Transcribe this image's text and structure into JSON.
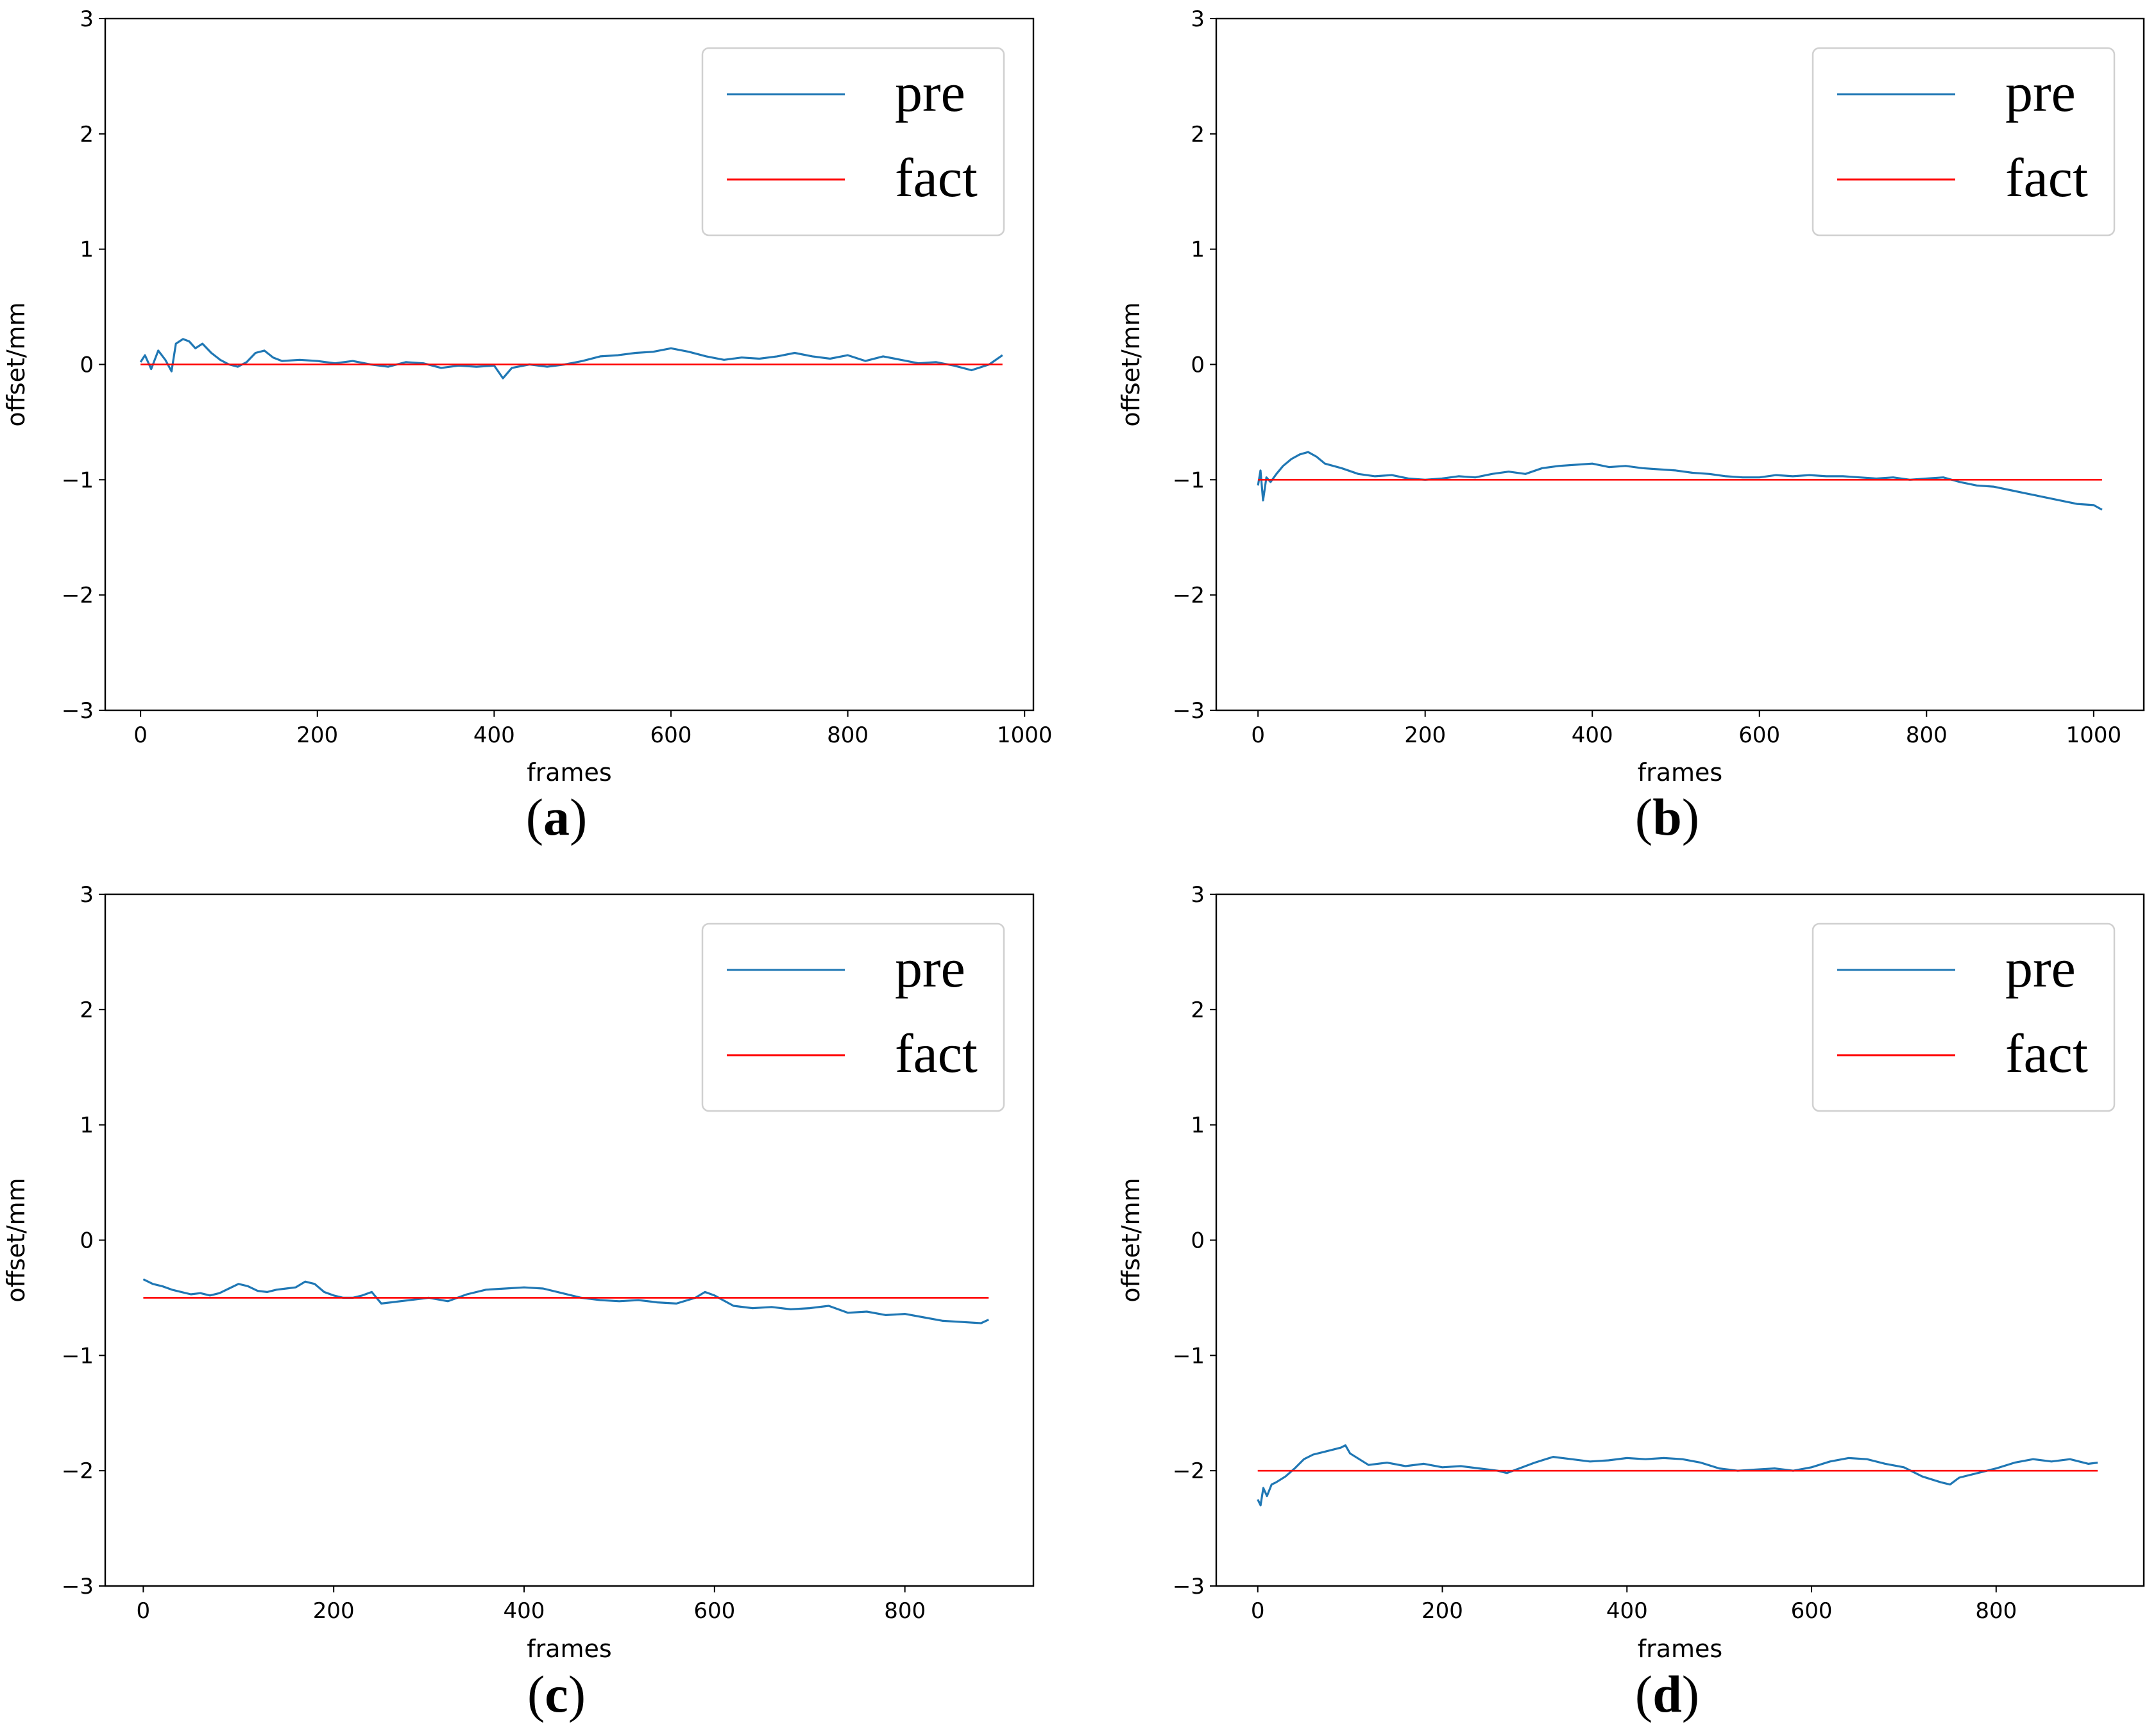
{
  "chart_data": [
    {
      "type": "line",
      "panel": "a",
      "caption_open": "(",
      "caption_letter": "a",
      "caption_close": ")",
      "xlabel": "frames",
      "ylabel": "offset/mm",
      "xlim": [
        -40,
        1010
      ],
      "ylim": [
        -3,
        3
      ],
      "xticks": [
        0,
        200,
        400,
        600,
        800,
        1000
      ],
      "yticks": [
        3,
        2,
        1,
        0,
        -1,
        -2,
        -3
      ],
      "ytick_labels": [
        "3",
        "2",
        "1",
        "0",
        "−1",
        "−2",
        "−3"
      ],
      "legend": [
        "pre",
        "fact"
      ],
      "legend_position": "top-right",
      "series": [
        {
          "name": "pre",
          "color": "#1f77b4",
          "x": [
            0,
            5,
            12,
            20,
            28,
            35,
            40,
            48,
            55,
            62,
            70,
            80,
            90,
            100,
            110,
            120,
            130,
            140,
            150,
            160,
            180,
            200,
            220,
            240,
            260,
            280,
            300,
            320,
            340,
            360,
            380,
            400,
            410,
            420,
            440,
            460,
            480,
            500,
            520,
            540,
            560,
            580,
            600,
            620,
            640,
            660,
            680,
            700,
            720,
            740,
            760,
            780,
            800,
            820,
            840,
            860,
            880,
            900,
            920,
            940,
            960,
            975
          ],
          "y": [
            0.02,
            0.08,
            -0.04,
            0.12,
            0.04,
            -0.06,
            0.18,
            0.22,
            0.2,
            0.14,
            0.18,
            0.1,
            0.04,
            0.0,
            -0.02,
            0.02,
            0.1,
            0.12,
            0.06,
            0.03,
            0.04,
            0.03,
            0.01,
            0.03,
            0.0,
            -0.02,
            0.02,
            0.01,
            -0.03,
            -0.01,
            -0.02,
            -0.01,
            -0.12,
            -0.03,
            0.0,
            -0.02,
            0.0,
            0.03,
            0.07,
            0.08,
            0.1,
            0.11,
            0.14,
            0.11,
            0.07,
            0.04,
            0.06,
            0.05,
            0.07,
            0.1,
            0.07,
            0.05,
            0.08,
            0.03,
            0.07,
            0.04,
            0.01,
            0.02,
            -0.01,
            -0.05,
            0.0,
            0.08
          ]
        },
        {
          "name": "fact",
          "color": "#ff0000",
          "x": [
            0,
            975
          ],
          "y": [
            0,
            0
          ]
        }
      ]
    },
    {
      "type": "line",
      "panel": "b",
      "caption_open": "(",
      "caption_letter": "b",
      "caption_close": ")",
      "xlabel": "frames",
      "ylabel": "offset/mm",
      "xlim": [
        -50,
        1060
      ],
      "ylim": [
        -3,
        3
      ],
      "xticks": [
        0,
        200,
        400,
        600,
        800,
        1000
      ],
      "yticks": [
        3,
        2,
        1,
        0,
        -1,
        -2,
        -3
      ],
      "ytick_labels": [
        "3",
        "2",
        "1",
        "0",
        "−1",
        "−2",
        "−3"
      ],
      "legend": [
        "pre",
        "fact"
      ],
      "legend_position": "top-right",
      "series": [
        {
          "name": "pre",
          "color": "#1f77b4",
          "x": [
            0,
            3,
            6,
            10,
            15,
            22,
            30,
            40,
            50,
            60,
            70,
            80,
            100,
            120,
            140,
            160,
            180,
            200,
            220,
            240,
            260,
            280,
            300,
            320,
            340,
            360,
            380,
            400,
            420,
            440,
            460,
            480,
            500,
            520,
            540,
            560,
            580,
            600,
            620,
            640,
            660,
            680,
            700,
            720,
            740,
            760,
            780,
            800,
            820,
            840,
            860,
            880,
            900,
            920,
            940,
            960,
            980,
            1000,
            1010
          ],
          "y": [
            -1.05,
            -0.92,
            -1.18,
            -0.98,
            -1.02,
            -0.95,
            -0.88,
            -0.82,
            -0.78,
            -0.76,
            -0.8,
            -0.86,
            -0.9,
            -0.95,
            -0.97,
            -0.96,
            -0.99,
            -1.0,
            -0.99,
            -0.97,
            -0.98,
            -0.95,
            -0.93,
            -0.95,
            -0.9,
            -0.88,
            -0.87,
            -0.86,
            -0.89,
            -0.88,
            -0.9,
            -0.91,
            -0.92,
            -0.94,
            -0.95,
            -0.97,
            -0.98,
            -0.98,
            -0.96,
            -0.97,
            -0.96,
            -0.97,
            -0.97,
            -0.98,
            -0.99,
            -0.98,
            -1.0,
            -0.99,
            -0.98,
            -1.02,
            -1.05,
            -1.06,
            -1.09,
            -1.12,
            -1.15,
            -1.18,
            -1.21,
            -1.22,
            -1.26
          ]
        },
        {
          "name": "fact",
          "color": "#ff0000",
          "x": [
            0,
            1010
          ],
          "y": [
            -1,
            -1
          ]
        }
      ]
    },
    {
      "type": "line",
      "panel": "c",
      "caption_open": "(",
      "caption_letter": "c",
      "caption_close": ")",
      "xlabel": "frames",
      "ylabel": "offset/mm",
      "xlim": [
        -40,
        935
      ],
      "ylim": [
        -3,
        3
      ],
      "xticks": [
        0,
        200,
        400,
        600,
        800
      ],
      "yticks": [
        3,
        2,
        1,
        0,
        -1,
        -2,
        -3
      ],
      "ytick_labels": [
        "3",
        "2",
        "1",
        "0",
        "−1",
        "−2",
        "−3"
      ],
      "legend": [
        "pre",
        "fact"
      ],
      "legend_position": "top-right",
      "series": [
        {
          "name": "pre",
          "color": "#1f77b4",
          "x": [
            0,
            10,
            20,
            30,
            40,
            50,
            60,
            70,
            80,
            90,
            100,
            110,
            120,
            130,
            140,
            150,
            160,
            170,
            180,
            190,
            200,
            210,
            220,
            230,
            240,
            250,
            260,
            280,
            300,
            320,
            340,
            360,
            380,
            400,
            420,
            440,
            460,
            480,
            500,
            520,
            540,
            560,
            580,
            590,
            600,
            620,
            640,
            660,
            680,
            700,
            720,
            740,
            760,
            780,
            800,
            820,
            840,
            860,
            880,
            888
          ],
          "y": [
            -0.34,
            -0.38,
            -0.4,
            -0.43,
            -0.45,
            -0.47,
            -0.46,
            -0.48,
            -0.46,
            -0.42,
            -0.38,
            -0.4,
            -0.44,
            -0.45,
            -0.43,
            -0.42,
            -0.41,
            -0.36,
            -0.38,
            -0.45,
            -0.48,
            -0.5,
            -0.5,
            -0.48,
            -0.45,
            -0.55,
            -0.54,
            -0.52,
            -0.5,
            -0.53,
            -0.47,
            -0.43,
            -0.42,
            -0.41,
            -0.42,
            -0.46,
            -0.5,
            -0.52,
            -0.53,
            -0.52,
            -0.54,
            -0.55,
            -0.5,
            -0.45,
            -0.48,
            -0.57,
            -0.59,
            -0.58,
            -0.6,
            -0.59,
            -0.57,
            -0.63,
            -0.62,
            -0.65,
            -0.64,
            -0.67,
            -0.7,
            -0.71,
            -0.72,
            -0.69
          ]
        },
        {
          "name": "fact",
          "color": "#ff0000",
          "x": [
            0,
            888
          ],
          "y": [
            -0.5,
            -0.5
          ]
        }
      ]
    },
    {
      "type": "line",
      "panel": "d",
      "caption_open": "(",
      "caption_letter": "d",
      "caption_close": ")",
      "xlabel": "frames",
      "ylabel": "offset/mm",
      "xlim": [
        -45,
        960
      ],
      "ylim": [
        -3,
        3
      ],
      "xticks": [
        0,
        200,
        400,
        600,
        800
      ],
      "yticks": [
        3,
        2,
        1,
        0,
        -1,
        -2,
        -3
      ],
      "ytick_labels": [
        "3",
        "2",
        "1",
        "0",
        "−1",
        "−2",
        "−3"
      ],
      "legend": [
        "pre",
        "fact"
      ],
      "legend_position": "top-right",
      "series": [
        {
          "name": "pre",
          "color": "#1f77b4",
          "x": [
            0,
            3,
            6,
            10,
            15,
            20,
            30,
            40,
            50,
            60,
            70,
            80,
            90,
            95,
            100,
            110,
            120,
            140,
            160,
            180,
            200,
            220,
            240,
            260,
            270,
            280,
            300,
            320,
            340,
            360,
            380,
            400,
            420,
            440,
            460,
            480,
            500,
            520,
            540,
            560,
            580,
            600,
            620,
            640,
            660,
            680,
            700,
            720,
            740,
            750,
            760,
            780,
            800,
            820,
            840,
            860,
            880,
            900,
            910
          ],
          "y": [
            -2.25,
            -2.3,
            -2.15,
            -2.22,
            -2.12,
            -2.1,
            -2.05,
            -1.98,
            -1.9,
            -1.86,
            -1.84,
            -1.82,
            -1.8,
            -1.78,
            -1.85,
            -1.9,
            -1.95,
            -1.93,
            -1.96,
            -1.94,
            -1.97,
            -1.96,
            -1.98,
            -2.0,
            -2.02,
            -1.99,
            -1.93,
            -1.88,
            -1.9,
            -1.92,
            -1.91,
            -1.89,
            -1.9,
            -1.89,
            -1.9,
            -1.93,
            -1.98,
            -2.0,
            -1.99,
            -1.98,
            -2.0,
            -1.97,
            -1.92,
            -1.89,
            -1.9,
            -1.94,
            -1.97,
            -2.05,
            -2.1,
            -2.12,
            -2.06,
            -2.02,
            -1.98,
            -1.93,
            -1.9,
            -1.92,
            -1.9,
            -1.94,
            -1.93
          ]
        },
        {
          "name": "fact",
          "color": "#ff0000",
          "x": [
            0,
            910
          ],
          "y": [
            -2,
            -2
          ]
        }
      ]
    }
  ]
}
